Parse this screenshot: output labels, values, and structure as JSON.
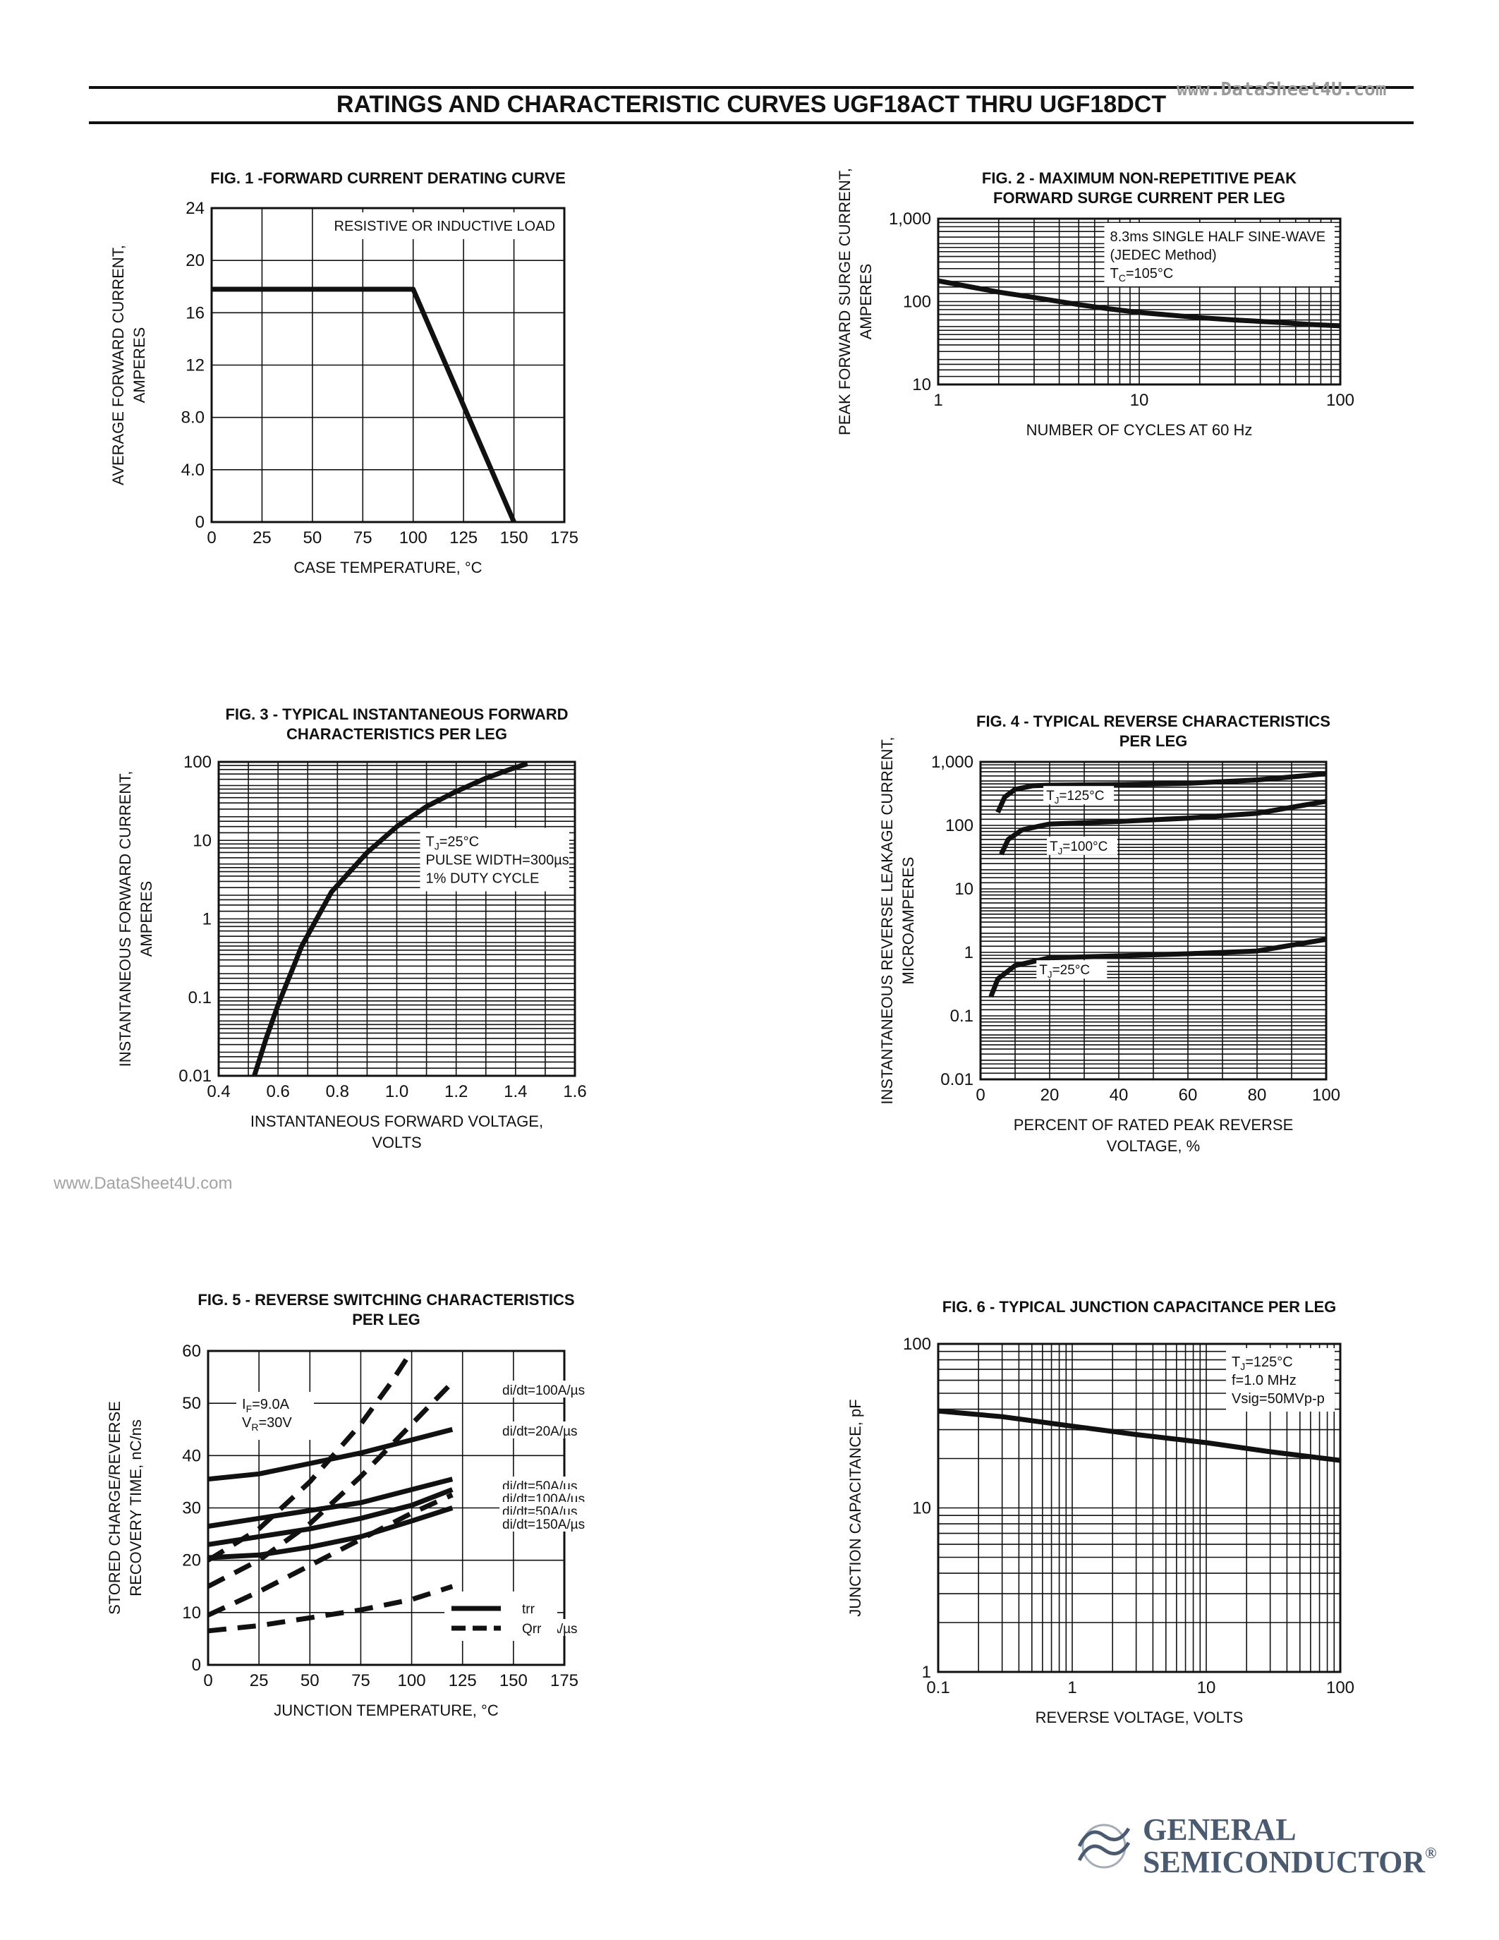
{
  "header": {
    "title": "RATINGS AND CHARACTERISTIC CURVES UGF18ACT THRU UGF18DCT",
    "watermark_top": "www.DataSheet4U.com",
    "watermark_side": "www.DataSheet4U.com"
  },
  "logo": {
    "line1": "GENERAL",
    "line2": "SEMICONDUCTOR",
    "registered": "®"
  },
  "colors": {
    "ink": "#111111",
    "watermark": "#9a9a9a",
    "logo": "#4a5a70"
  },
  "chart_data": [
    {
      "id": "fig1",
      "type": "line",
      "title": "FIG. 1 -FORWARD CURRENT DERATING CURVE",
      "xlabel": "CASE TEMPERATURE, °C",
      "ylabel": [
        "AVERAGE FORWARD CURRENT,",
        "AMPERES"
      ],
      "xscale": "linear",
      "yscale": "linear",
      "xlim": [
        0,
        175
      ],
      "ylim": [
        0,
        24
      ],
      "xticks": [
        0,
        25,
        50,
        75,
        100,
        125,
        150,
        175
      ],
      "xtick_labels": [
        "0",
        "25",
        "50",
        "75",
        "100",
        "125",
        "150",
        "175"
      ],
      "yticks": [
        0,
        4,
        8,
        12,
        16,
        20,
        24
      ],
      "ytick_labels": [
        "0",
        "4.0",
        "8.0",
        "12",
        "16",
        "20",
        "24"
      ],
      "xgrid": [
        25,
        50,
        75,
        100,
        125,
        150
      ],
      "ygrid": [
        4,
        8,
        12,
        16,
        20
      ],
      "annotations": [
        {
          "lines": [
            "RESISTIVE OR INDUCTIVE LOAD"
          ],
          "anchor": "top-right"
        }
      ],
      "series": [
        {
          "style": "solid",
          "x": [
            0,
            100,
            150
          ],
          "y": [
            17.8,
            17.8,
            0
          ]
        }
      ]
    },
    {
      "id": "fig2",
      "type": "line",
      "title": [
        "FIG. 2 - MAXIMUM NON-REPETITIVE PEAK",
        "FORWARD SURGE CURRENT PER LEG"
      ],
      "xlabel": "NUMBER OF CYCLES AT 60 Hz",
      "ylabel": [
        "PEAK FORWARD SURGE CURRENT,",
        "AMPERES"
      ],
      "xscale": "log",
      "yscale": "log",
      "xlim": [
        1,
        100
      ],
      "ylim": [
        10,
        1000
      ],
      "xticks": [
        1,
        10,
        100
      ],
      "xtick_labels": [
        "1",
        "10",
        "100"
      ],
      "yticks": [
        10,
        100,
        1000
      ],
      "ytick_labels": [
        "10",
        "100",
        "1,000"
      ],
      "annotations": [
        {
          "lines": [
            "8.3ms SINGLE HALF SINE-WAVE",
            "(JEDEC Method)",
            "TC=105°C"
          ],
          "anchor": "top-right"
        }
      ],
      "series": [
        {
          "style": "solid",
          "x": [
            1,
            1.5,
            2,
            3,
            5,
            7,
            10,
            15,
            20,
            30,
            50,
            70,
            100
          ],
          "y": [
            178,
            148,
            130,
            112,
            92,
            82,
            74,
            68,
            64,
            60,
            56,
            53,
            51
          ]
        }
      ]
    },
    {
      "id": "fig3",
      "type": "line",
      "title": [
        "FIG. 3 - TYPICAL INSTANTANEOUS FORWARD",
        "CHARACTERISTICS PER LEG"
      ],
      "xlabel": [
        "INSTANTANEOUS FORWARD VOLTAGE,",
        "VOLTS"
      ],
      "ylabel": [
        "INSTANTANEOUS FORWARD CURRENT,",
        "AMPERES"
      ],
      "xscale": "linear",
      "yscale": "log",
      "xlim": [
        0.4,
        1.6
      ],
      "ylim": [
        0.01,
        100
      ],
      "xticks": [
        0.4,
        0.6,
        0.8,
        1.0,
        1.2,
        1.4,
        1.6
      ],
      "xtick_labels": [
        "0.4",
        "0.6",
        "0.8",
        "1.0",
        "1.2",
        "1.4",
        "1.6"
      ],
      "yticks": [
        0.01,
        0.1,
        1,
        10,
        100
      ],
      "ytick_labels": [
        "0.01",
        "0.1",
        "1",
        "10",
        "100"
      ],
      "xgrid": [
        0.5,
        0.6,
        0.7,
        0.8,
        0.9,
        1.0,
        1.1,
        1.2,
        1.3,
        1.4,
        1.5
      ],
      "annotations": [
        {
          "lines": [
            "TJ=25°C",
            "PULSE WIDTH=300µs",
            "1% DUTY CYCLE"
          ],
          "anchor": "right"
        }
      ],
      "series": [
        {
          "style": "solid",
          "x": [
            0.52,
            0.56,
            0.6,
            0.68,
            0.78,
            0.9,
            1.0,
            1.1,
            1.2,
            1.3,
            1.38,
            1.44
          ],
          "y": [
            0.01,
            0.03,
            0.08,
            0.45,
            2.2,
            7,
            15,
            27,
            42,
            62,
            80,
            95
          ]
        }
      ]
    },
    {
      "id": "fig4",
      "type": "line",
      "title": [
        "FIG. 4 - TYPICAL REVERSE CHARACTERISTICS",
        "PER LEG"
      ],
      "xlabel": [
        "PERCENT OF RATED PEAK REVERSE",
        "VOLTAGE, %"
      ],
      "ylabel": [
        "INSTANTANEOUS REVERSE LEAKAGE CURRENT,",
        "MICROAMPERES"
      ],
      "xscale": "linear",
      "yscale": "log",
      "xlim": [
        0,
        100
      ],
      "ylim": [
        0.01,
        1000
      ],
      "xticks": [
        0,
        20,
        40,
        60,
        80,
        100
      ],
      "xtick_labels": [
        "0",
        "20",
        "40",
        "60",
        "80",
        "100"
      ],
      "yticks": [
        0.01,
        0.1,
        1,
        10,
        100,
        1000
      ],
      "ytick_labels": [
        "0.01",
        "0.1",
        "1",
        "10",
        "100",
        "1,000"
      ],
      "xgrid": [
        10,
        20,
        30,
        40,
        50,
        60,
        70,
        80,
        90
      ],
      "series": [
        {
          "name": "TJ=125°C",
          "style": "solid",
          "x": [
            5,
            7,
            10,
            15,
            20,
            40,
            60,
            80,
            100
          ],
          "y": [
            160,
            280,
            370,
            420,
            430,
            440,
            460,
            520,
            650
          ]
        },
        {
          "name": "TJ=100°C",
          "style": "solid",
          "x": [
            6,
            8,
            12,
            18,
            20,
            40,
            60,
            80,
            100
          ],
          "y": [
            35,
            60,
            85,
            100,
            105,
            115,
            130,
            155,
            240
          ]
        },
        {
          "name": "TJ=25°C",
          "style": "solid",
          "x": [
            3,
            5,
            10,
            20,
            40,
            60,
            80,
            100
          ],
          "y": [
            0.2,
            0.38,
            0.62,
            0.82,
            0.88,
            0.95,
            1.05,
            1.6
          ]
        }
      ]
    },
    {
      "id": "fig5",
      "type": "line",
      "title": [
        "FIG. 5 - REVERSE SWITCHING CHARACTERISTICS",
        "PER LEG"
      ],
      "xlabel": "JUNCTION TEMPERATURE, °C",
      "ylabel": [
        "STORED CHARGE/REVERSE",
        "RECOVERY TIME, nC/ns"
      ],
      "xscale": "linear",
      "yscale": "linear",
      "xlim": [
        0,
        175
      ],
      "ylim": [
        0,
        60
      ],
      "xticks": [
        0,
        25,
        50,
        75,
        100,
        125,
        150,
        175
      ],
      "xtick_labels": [
        "0",
        "25",
        "50",
        "75",
        "100",
        "125",
        "150",
        "175"
      ],
      "yticks": [
        0,
        10,
        20,
        30,
        40,
        50,
        60
      ],
      "ytick_labels": [
        "0",
        "10",
        "20",
        "30",
        "40",
        "50",
        "60"
      ],
      "xgrid": [
        25,
        50,
        75,
        100,
        125,
        150
      ],
      "ygrid": [
        10,
        20,
        30,
        40,
        50
      ],
      "conditions": [
        "IF=9.0A",
        "VR=30V"
      ],
      "legend": [
        {
          "label": "trr",
          "style": "solid"
        },
        {
          "label": "Qrr",
          "style": "dashed"
        }
      ],
      "series": [
        {
          "name": "di/dt=100A/µs",
          "kind": "Qrr",
          "style": "dashed",
          "x": [
            0,
            25,
            50,
            75,
            100,
            120
          ],
          "y": [
            15,
            20,
            27,
            36,
            46,
            54
          ]
        },
        {
          "name": "di/dt=20A/µs",
          "kind": "trr",
          "style": "solid",
          "x": [
            0,
            25,
            50,
            75,
            100,
            120
          ],
          "y": [
            35.5,
            36.5,
            38.5,
            40.5,
            43,
            45
          ]
        },
        {
          "name": "di/dt=50A/µs",
          "kind": "trr",
          "style": "solid",
          "x": [
            0,
            25,
            50,
            75,
            100,
            120
          ],
          "y": [
            26.5,
            28,
            29.5,
            31,
            33.5,
            35.5
          ]
        },
        {
          "name": "di/dt=100A/µs",
          "kind": "trr",
          "style": "solid",
          "x": [
            0,
            25,
            50,
            75,
            100,
            120
          ],
          "y": [
            23,
            24.5,
            26,
            28,
            30.5,
            33.5
          ]
        },
        {
          "name": "di/dt=50A/µs",
          "kind": "Qrr",
          "style": "dashed",
          "x": [
            0,
            25,
            50,
            75,
            100,
            120
          ],
          "y": [
            9.5,
            14,
            19,
            24,
            29,
            32.5
          ]
        },
        {
          "name": "di/dt=150A/µs",
          "kind": "trr",
          "style": "solid",
          "x": [
            0,
            25,
            50,
            75,
            100,
            120
          ],
          "y": [
            20.5,
            21,
            22.5,
            24.5,
            27.5,
            30
          ]
        },
        {
          "name": "di/dt=20A/µs",
          "kind": "Qrr",
          "style": "dashed",
          "x": [
            0,
            25,
            50,
            75,
            100,
            120
          ],
          "y": [
            6.5,
            7.5,
            9,
            10.5,
            12.5,
            15
          ]
        },
        {
          "name": "di/dt=150A/µs",
          "kind": "Qrr",
          "style": "dashed",
          "x": [
            0,
            25,
            50,
            75,
            90,
            100
          ],
          "y": [
            20,
            26,
            35,
            46,
            54,
            60
          ]
        }
      ]
    },
    {
      "id": "fig6",
      "type": "line",
      "title": "FIG. 6 - TYPICAL JUNCTION CAPACITANCE PER LEG",
      "xlabel": "REVERSE VOLTAGE, VOLTS",
      "ylabel": "JUNCTION CAPACITANCE, pF",
      "xscale": "log",
      "yscale": "log",
      "xlim": [
        0.1,
        100
      ],
      "ylim": [
        1,
        100
      ],
      "xticks": [
        0.1,
        1,
        10,
        100
      ],
      "xtick_labels": [
        "0.1",
        "1",
        "10",
        "100"
      ],
      "yticks": [
        1,
        10,
        100
      ],
      "ytick_labels": [
        "1",
        "10",
        "100"
      ],
      "annotations": [
        {
          "lines": [
            "TJ=125°C",
            "f=1.0 MHz",
            "Vsig=50MVp-p"
          ],
          "anchor": "top-right"
        }
      ],
      "series": [
        {
          "style": "solid",
          "x": [
            0.1,
            0.3,
            1,
            3,
            10,
            30,
            100
          ],
          "y": [
            39,
            36,
            31.5,
            28,
            25,
            22,
            19.5
          ]
        }
      ]
    }
  ]
}
